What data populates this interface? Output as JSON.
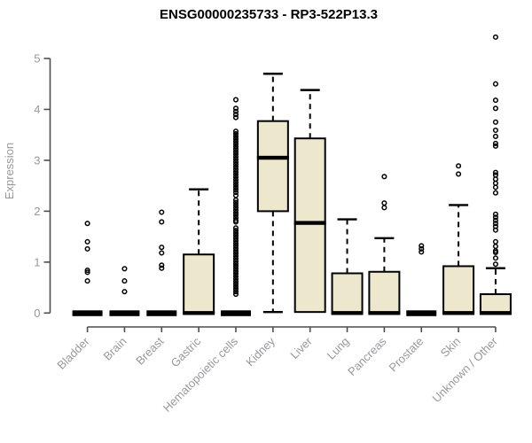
{
  "chart_data": {
    "type": "boxplot",
    "title": "ENSG00000235733 - RP3-522P13.3",
    "ylabel": "Expression",
    "xlabel": "",
    "ylim": [
      0,
      5.45
    ],
    "yticks": [
      0,
      1,
      2,
      3,
      4,
      5
    ],
    "grid": false,
    "legend": "none",
    "colors": {
      "box_fill": "#ece7cd",
      "box_border": "#000000",
      "median": "#000000",
      "whisker": "#000000",
      "axis_line": "#4d4d4d",
      "tick_label": "#98989e",
      "title": "#000000",
      "background": "#ffffff"
    },
    "categories": [
      "Bladder",
      "Brain",
      "Breast",
      "Gastric",
      "Hematopoietic cells",
      "Kidney",
      "Liver",
      "Lung",
      "Pancreas",
      "Prostate",
      "Skin",
      "Unknown / Other"
    ],
    "series": [
      {
        "name": "Bladder",
        "q1": 0,
        "median": 0,
        "q3": 0,
        "whisker_low": 0,
        "whisker_high": 0,
        "outliers": [
          1.76,
          1.4,
          1.26,
          0.84,
          0.8,
          0.63
        ]
      },
      {
        "name": "Brain",
        "q1": 0,
        "median": 0,
        "q3": 0,
        "whisker_low": 0,
        "whisker_high": 0,
        "outliers": [
          0.87,
          0.63,
          0.42
        ]
      },
      {
        "name": "Breast",
        "q1": 0,
        "median": 0,
        "q3": 0,
        "whisker_low": 0,
        "whisker_high": 0,
        "outliers": [
          1.98,
          1.79,
          1.29,
          1.18,
          0.94,
          0.88
        ]
      },
      {
        "name": "Gastric",
        "q1": 0,
        "median": 0,
        "q3": 1.15,
        "whisker_low": 0,
        "whisker_high": 2.43,
        "outliers": []
      },
      {
        "name": "Hematopoietic cells",
        "q1": 0,
        "median": 0,
        "q3": 0,
        "whisker_low": 0,
        "whisker_high": 0,
        "outliers": [
          4.19,
          4.02,
          3.96,
          3.9,
          3.84,
          3.57,
          3.52,
          3.47,
          3.42,
          3.37,
          3.32,
          3.27,
          3.22,
          3.17,
          3.12,
          3.07,
          3.02,
          2.97,
          2.92,
          2.87,
          2.82,
          2.77,
          2.72,
          2.67,
          2.62,
          2.57,
          2.52,
          2.47,
          2.42,
          2.37,
          2.31,
          2.22,
          2.17,
          2.12,
          2.07,
          2.02,
          1.97,
          1.92,
          1.87,
          1.82,
          1.79,
          1.67,
          1.62,
          1.57,
          1.52,
          1.47,
          1.42,
          1.37,
          1.32,
          1.27,
          1.22,
          1.17,
          1.12,
          1.07,
          1.02,
          0.97,
          0.92,
          0.87,
          0.82,
          0.77,
          0.72,
          0.67,
          0.62,
          0.57,
          0.52,
          0.47,
          0.42,
          0.37
        ]
      },
      {
        "name": "Kidney",
        "q1": 2.0,
        "median": 3.05,
        "q3": 3.77,
        "whisker_low": 0.02,
        "whisker_high": 4.7,
        "outliers": []
      },
      {
        "name": "Liver",
        "q1": 0.02,
        "median": 1.77,
        "q3": 3.43,
        "whisker_low": 0.02,
        "whisker_high": 4.38,
        "outliers": []
      },
      {
        "name": "Lung",
        "q1": 0,
        "median": 0,
        "q3": 0.78,
        "whisker_low": 0,
        "whisker_high": 1.84,
        "outliers": []
      },
      {
        "name": "Pancreas",
        "q1": 0,
        "median": 0,
        "q3": 0.81,
        "whisker_low": 0,
        "whisker_high": 1.47,
        "outliers": [
          2.68,
          2.16,
          2.07
        ]
      },
      {
        "name": "Prostate",
        "q1": 0,
        "median": 0,
        "q3": 0,
        "whisker_low": 0,
        "whisker_high": 0,
        "outliers": [
          1.32,
          1.26,
          1.2
        ]
      },
      {
        "name": "Skin",
        "q1": 0,
        "median": 0,
        "q3": 0.92,
        "whisker_low": 0,
        "whisker_high": 2.12,
        "outliers": [
          2.89,
          2.73
        ]
      },
      {
        "name": "Unknown / Other",
        "q1": 0,
        "median": 0,
        "q3": 0.37,
        "whisker_low": 0,
        "whisker_high": 0.88,
        "outliers": [
          5.42,
          4.5,
          4.18,
          4.02,
          3.75,
          3.59,
          3.47,
          3.33,
          3.28,
          2.76,
          2.71,
          2.63,
          2.55,
          2.47,
          2.36,
          1.94,
          1.88,
          1.82,
          1.76,
          1.7,
          1.63,
          1.4,
          1.31,
          1.22,
          1.19,
          1.08,
          0.96
        ]
      }
    ]
  }
}
